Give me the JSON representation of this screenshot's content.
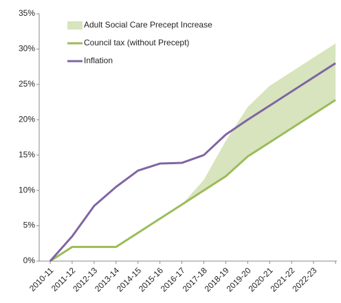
{
  "chart_data": {
    "type": "line",
    "categories": [
      "2010-11",
      "2011-12",
      "2012-13",
      "2013-14",
      "2014-15",
      "2015-16",
      "2016-17",
      "2017-18",
      "2018-19",
      "2019-20",
      "2020-21",
      "2021-22",
      "2022-23",
      null
    ],
    "series": [
      {
        "name": "Adult Social Care Precept Increase",
        "color": "#d7e4bd",
        "kind": "area",
        "stacked_on": 1,
        "values": [
          null,
          null,
          null,
          null,
          null,
          null,
          0,
          1.5,
          5,
          7,
          8,
          8,
          8,
          8
        ]
      },
      {
        "name": "Council tax (without Precept)",
        "color": "#9bbb59",
        "values": [
          0,
          2,
          2,
          2,
          4,
          6,
          8,
          10,
          12,
          14.8,
          16.8,
          18.8,
          20.8,
          22.8
        ]
      },
      {
        "name": "Inflation",
        "color": "#8064a2",
        "values": [
          0,
          3.5,
          7.8,
          10.5,
          12.8,
          13.8,
          13.9,
          15,
          17.9,
          20,
          22,
          24,
          26,
          28
        ]
      }
    ],
    "ylim": [
      0,
      35
    ],
    "yticks": [
      {
        "value": 0,
        "label": "0%"
      },
      {
        "value": 5,
        "label": "5%"
      },
      {
        "value": 10,
        "label": "10%"
      },
      {
        "value": 15,
        "label": "15%"
      },
      {
        "value": 20,
        "label": "20%"
      },
      {
        "value": 25,
        "label": "25%"
      },
      {
        "value": 30,
        "label": "30%"
      },
      {
        "value": 35,
        "label": "35%"
      }
    ],
    "legend": "top-left"
  }
}
